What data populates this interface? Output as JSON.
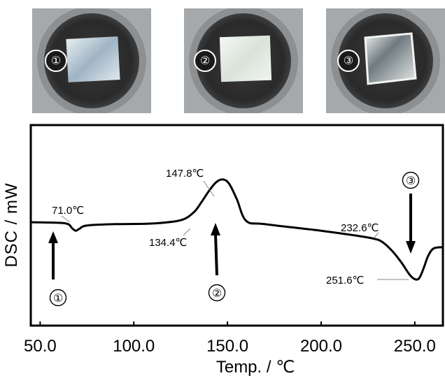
{
  "photos": [
    {
      "label": "①"
    },
    {
      "label": "②"
    },
    {
      "label": "③"
    }
  ],
  "chart_data": {
    "type": "line",
    "xlabel": "Temp. / ℃",
    "ylabel": "DSC / mW",
    "xlim": [
      45,
      265
    ],
    "x_ticks": [
      "50.0",
      "100.0",
      "150.0",
      "200.0",
      "250.0"
    ],
    "x_tick_values": [
      50,
      100,
      150,
      200,
      250
    ],
    "series": [
      {
        "x": [
          45,
          60,
          65,
          67,
          69,
          71,
          75,
          90,
          110,
          125,
          132,
          136,
          140,
          144,
          147.8,
          151,
          155,
          160,
          170,
          200,
          220,
          228,
          232.6,
          238,
          243,
          247,
          249.5,
          251.6,
          253,
          255,
          257,
          260,
          265
        ],
        "y": [
          0.0,
          -0.1,
          -0.3,
          -0.9,
          -1.3,
          -1.0,
          -0.5,
          -0.3,
          -0.2,
          0.3,
          1.5,
          3.0,
          4.7,
          6.1,
          6.5,
          5.8,
          3.5,
          0.2,
          -0.3,
          -1.3,
          -2.1,
          -2.5,
          -3.0,
          -4.4,
          -6.2,
          -7.9,
          -8.6,
          -8.7,
          -8.2,
          -6.8,
          -5.2,
          -4.0,
          -3.8
        ]
      }
    ],
    "annotations": [
      {
        "text": "71.0℃",
        "x": 71.0
      },
      {
        "text": "134.4℃",
        "x": 134.4
      },
      {
        "text": "147.8℃",
        "x": 147.8
      },
      {
        "text": "232.6℃",
        "x": 232.6
      },
      {
        "text": "251.6℃",
        "x": 251.6
      }
    ],
    "markers": [
      {
        "label": "①",
        "x": 55
      },
      {
        "label": "②",
        "x": 144
      },
      {
        "label": "③",
        "x": 247
      }
    ]
  }
}
